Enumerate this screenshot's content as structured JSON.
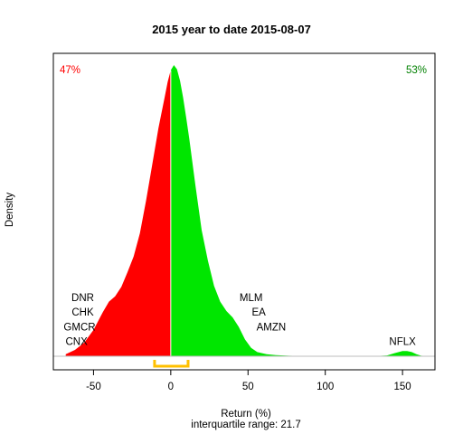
{
  "chart_data": {
    "type": "area",
    "title": "2015  year to date 2015-08-07",
    "xlabel": "Return (%)",
    "xlabel_sub": "interquartile range: 21.7",
    "ylabel": "Density",
    "xlim": [
      -76,
      171
    ],
    "ylim": [
      0,
      0.03
    ],
    "x_ticks": [
      -50,
      0,
      50,
      100,
      150
    ],
    "x_tick_labels": [
      "-50",
      "0",
      "50",
      "100",
      "150"
    ],
    "negative_color": "#ff0000",
    "positive_color": "#00e600",
    "split_line_color": "#ffffff",
    "baseline_color": "#bebebe",
    "iqr_color": "#ffc000",
    "negative_share": "47%",
    "positive_share": "53%",
    "iqr_range": [
      -10.5,
      11.2
    ],
    "density": {
      "x": [
        -68,
        -62,
        -56,
        -50,
        -44,
        -40,
        -36,
        -32,
        -28,
        -24,
        -20,
        -16,
        -12,
        -8,
        -4,
        -2,
        0,
        2,
        4,
        6,
        8,
        10,
        12,
        16,
        20,
        24,
        28,
        32,
        36,
        40,
        44,
        48,
        52,
        56,
        62,
        68,
        76,
        90,
        110,
        130,
        140,
        145,
        150,
        153,
        156,
        159,
        162,
        168
      ],
      "y": [
        0.0002,
        0.0006,
        0.0013,
        0.0025,
        0.0042,
        0.0052,
        0.0057,
        0.0066,
        0.008,
        0.0095,
        0.0117,
        0.0148,
        0.0182,
        0.0217,
        0.0246,
        0.0261,
        0.0272,
        0.0277,
        0.0273,
        0.0262,
        0.0246,
        0.0227,
        0.0207,
        0.0162,
        0.012,
        0.0091,
        0.0067,
        0.0052,
        0.0043,
        0.0037,
        0.0028,
        0.0016,
        0.0008,
        0.0004,
        0.0002,
        0.0001,
        5e-05,
        0.0,
        0.0,
        0.0,
        8e-05,
        0.0003,
        0.0005,
        0.0005,
        0.0004,
        0.0002,
        5e-05,
        0.0
      ]
    },
    "annotations": [
      {
        "text": "DNR",
        "x": -57,
        "y": 0.0056
      },
      {
        "text": "CHK",
        "x": -57,
        "y": 0.0042
      },
      {
        "text": "GMCR",
        "x": -59,
        "y": 0.0028
      },
      {
        "text": "CNX",
        "x": -61,
        "y": 0.0014
      },
      {
        "text": "MLM",
        "x": 52,
        "y": 0.0056
      },
      {
        "text": "EA",
        "x": 57,
        "y": 0.0042
      },
      {
        "text": "AMZN",
        "x": 65,
        "y": 0.0028
      },
      {
        "text": "NFLX",
        "x": 150,
        "y": 0.0014
      }
    ]
  }
}
